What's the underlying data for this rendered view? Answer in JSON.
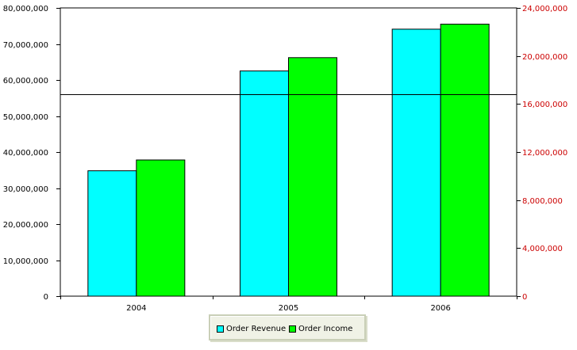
{
  "chart_data": {
    "type": "bar",
    "categories": [
      "2004",
      "2005",
      "2006"
    ],
    "series": [
      {
        "name": "Order Revenue",
        "values": [
          34800000,
          62500000,
          74100000
        ],
        "color": "#00ffff",
        "axis": "left"
      },
      {
        "name": "Order Income",
        "values": [
          37800000,
          66200000,
          75500000
        ],
        "color": "#00ff00",
        "axis": "left"
      }
    ],
    "left_axis": {
      "ylim": [
        0,
        80000000
      ],
      "ticks": [
        {
          "value": 0,
          "label": "0"
        },
        {
          "value": 10000000,
          "label": "10,000,000"
        },
        {
          "value": 20000000,
          "label": "20,000,000"
        },
        {
          "value": 30000000,
          "label": "30,000,000"
        },
        {
          "value": 40000000,
          "label": "40,000,000"
        },
        {
          "value": 50000000,
          "label": "50,000,000"
        },
        {
          "value": 60000000,
          "label": "60,000,000"
        },
        {
          "value": 70000000,
          "label": "70,000,000"
        },
        {
          "value": 80000000,
          "label": "80,000,000"
        }
      ],
      "color": "#000000"
    },
    "right_axis": {
      "ylim": [
        0,
        24000000
      ],
      "ticks": [
        {
          "value": 0,
          "label": "0"
        },
        {
          "value": 4000000,
          "label": "4,000,000"
        },
        {
          "value": 8000000,
          "label": "8,000,000"
        },
        {
          "value": 12000000,
          "label": "12,000,000"
        },
        {
          "value": 16000000,
          "label": "16,000,000"
        },
        {
          "value": 20000000,
          "label": "20,000,000"
        },
        {
          "value": 24000000,
          "label": "24,000,000"
        }
      ],
      "color": "#cc0000"
    },
    "reference_line": {
      "axis": "right",
      "value": 16800000,
      "color": "#000000"
    },
    "grid": false,
    "legend_position": "bottom-center",
    "title": "",
    "xlabel": "",
    "ylabel": ""
  },
  "legend": {
    "items": [
      {
        "label": "Order Revenue",
        "color": "#00ffff"
      },
      {
        "label": "Order Income",
        "color": "#00ff00"
      }
    ]
  }
}
